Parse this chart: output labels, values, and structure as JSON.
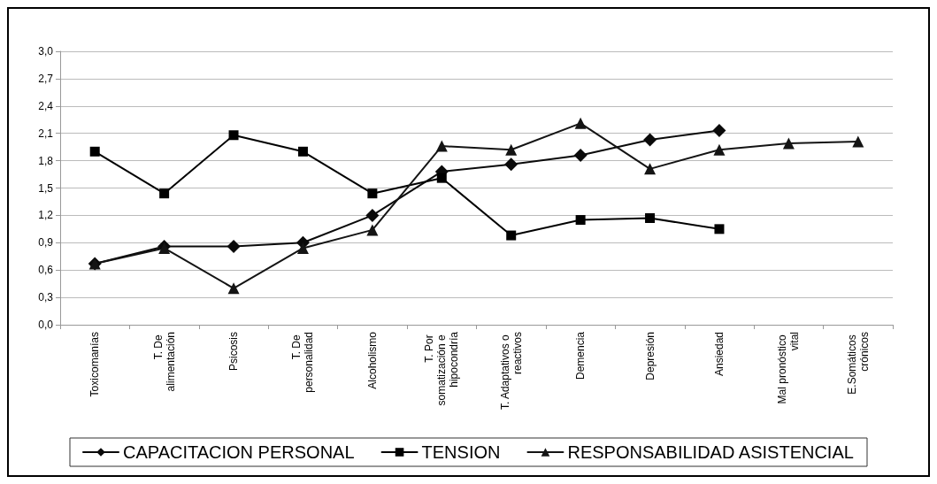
{
  "chart_data": {
    "type": "line",
    "categories": [
      "Toxicomanías",
      "T. De alimentación",
      "Psicosis",
      "T. De personalidad",
      "Alcoholismo",
      "T. Por somatización e hipocondría",
      "T. Adaptativos o reactivos",
      "Demencia",
      "Depresión",
      "Ansiedad",
      "Mal pronóstico vital",
      "E.Somáticos crónicos"
    ],
    "series": [
      {
        "name": "CAPACITACION PERSONAL",
        "color": "#0a0a0a",
        "marker": "diamond",
        "values": [
          0.67,
          0.86,
          0.86,
          0.9,
          1.2,
          1.68,
          1.76,
          1.86,
          2.03,
          2.13,
          null,
          null
        ]
      },
      {
        "name": "TENSION",
        "color": "#000000",
        "marker": "square",
        "values": [
          1.9,
          1.44,
          2.08,
          1.9,
          1.44,
          1.61,
          0.98,
          1.15,
          1.17,
          1.05,
          null,
          null
        ]
      },
      {
        "name": "RESPONSABILIDAD ASISTENCIAL",
        "color": "#141414",
        "marker": "triangle",
        "values": [
          0.67,
          0.84,
          0.4,
          0.84,
          1.04,
          1.96,
          1.92,
          2.21,
          1.71,
          1.92,
          1.99,
          2.01
        ]
      }
    ],
    "ylim": [
      0,
      3
    ],
    "yticks": [
      {
        "value": 0,
        "label": "0,0"
      },
      {
        "value": 0.3,
        "label": "0,3"
      },
      {
        "value": 0.6,
        "label": "0,6"
      },
      {
        "value": 0.9,
        "label": "0,9"
      },
      {
        "value": 1.2,
        "label": "1,2"
      },
      {
        "value": 1.5,
        "label": "1,5"
      },
      {
        "value": 1.8,
        "label": "1,8"
      },
      {
        "value": 2.1,
        "label": "2,1"
      },
      {
        "value": 2.4,
        "label": "2,4"
      },
      {
        "value": 2.7,
        "label": "2,7"
      },
      {
        "value": 3,
        "label": "3,0"
      }
    ],
    "grid": "y",
    "legend": "bottom",
    "line_style": "solid"
  }
}
